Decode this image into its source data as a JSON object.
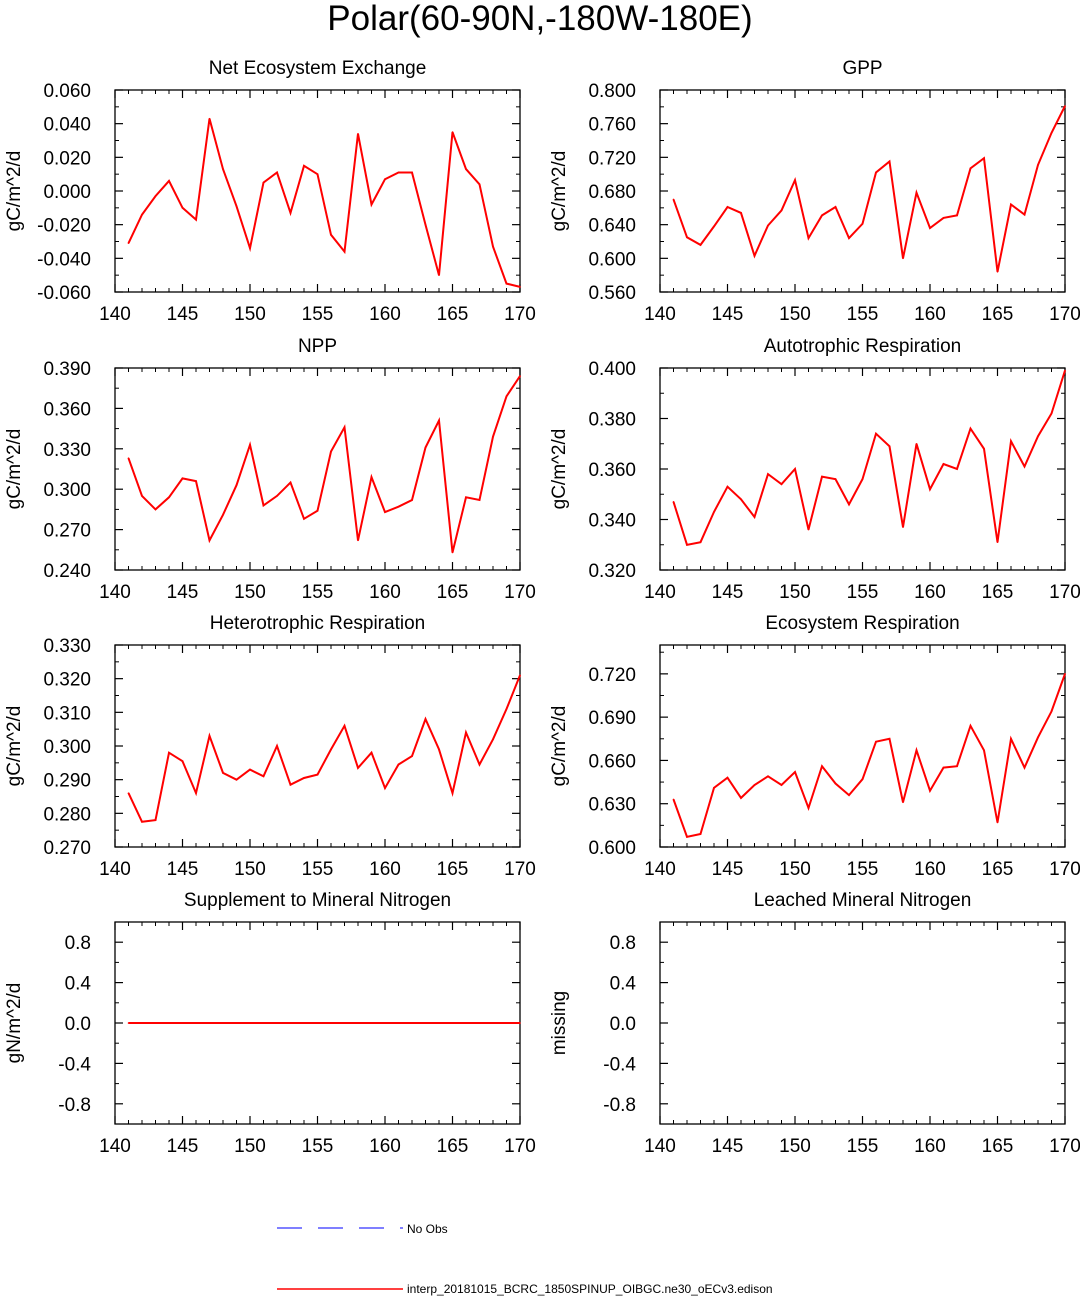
{
  "figure": {
    "title": "Polar(60-90N,-180W-180E)",
    "line_color": "#ff0000",
    "obs_color": "#5555ff"
  },
  "legend": {
    "items": [
      {
        "label": "No Obs",
        "style": "dashed",
        "color": "#5555ff"
      },
      {
        "label": "interp_20181015_BCRC_1850SPINUP_OIBGC.ne30_oECv3.edison",
        "style": "solid",
        "color": "#ff0000"
      }
    ]
  },
  "chart_data": [
    {
      "type": "line",
      "title": "Net Ecosystem Exchange",
      "ylabel": "gC/m^2/d",
      "xlabel": "",
      "xlim": [
        140,
        170
      ],
      "xticks": [
        140,
        145,
        150,
        155,
        160,
        165,
        170
      ],
      "ylim": [
        -0.06,
        0.06
      ],
      "yticks": [
        -0.06,
        -0.04,
        -0.02,
        0.0,
        0.02,
        0.04,
        0.06
      ],
      "ytick_labels": [
        "-0.060",
        "-0.040",
        "-0.020",
        "0.000",
        "0.020",
        "0.040",
        "0.060"
      ],
      "series": [
        {
          "name": "interp_20181015_BCRC_1850SPINUP_OIBGC.ne30_oECv3.edison",
          "x": [
            141,
            142,
            143,
            144,
            145,
            146,
            147,
            148,
            149,
            150,
            151,
            152,
            153,
            154,
            155,
            156,
            157,
            158,
            159,
            160,
            161,
            162,
            163,
            164,
            165,
            166,
            167,
            168,
            169,
            170
          ],
          "values": [
            -0.031,
            -0.014,
            -0.003,
            0.006,
            -0.01,
            -0.017,
            0.043,
            0.013,
            -0.009,
            -0.034,
            0.005,
            0.011,
            -0.013,
            0.015,
            0.01,
            -0.026,
            -0.036,
            0.034,
            -0.008,
            0.007,
            0.011,
            0.011,
            -0.02,
            -0.05,
            0.035,
            0.013,
            0.004,
            -0.033,
            -0.055,
            -0.057
          ]
        }
      ]
    },
    {
      "type": "line",
      "title": "GPP",
      "ylabel": "gC/m^2/d",
      "xlabel": "",
      "xlim": [
        140,
        170
      ],
      "xticks": [
        140,
        145,
        150,
        155,
        160,
        165,
        170
      ],
      "ylim": [
        0.56,
        0.8
      ],
      "yticks": [
        0.56,
        0.6,
        0.64,
        0.68,
        0.72,
        0.76,
        0.8
      ],
      "ytick_labels": [
        "0.560",
        "0.600",
        "0.640",
        "0.680",
        "0.720",
        "0.760",
        "0.800"
      ],
      "series": [
        {
          "name": "interp_20181015_BCRC_1850SPINUP_OIBGC.ne30_oECv3.edison",
          "x": [
            141,
            142,
            143,
            144,
            145,
            146,
            147,
            148,
            149,
            150,
            151,
            152,
            153,
            154,
            155,
            156,
            157,
            158,
            159,
            160,
            161,
            162,
            163,
            164,
            165,
            166,
            167,
            168,
            169,
            170
          ],
          "values": [
            0.67,
            0.625,
            0.616,
            0.638,
            0.661,
            0.654,
            0.603,
            0.639,
            0.657,
            0.693,
            0.624,
            0.651,
            0.661,
            0.624,
            0.641,
            0.702,
            0.715,
            0.6,
            0.678,
            0.636,
            0.648,
            0.651,
            0.707,
            0.719,
            0.584,
            0.664,
            0.652,
            0.711,
            0.749,
            0.781
          ]
        }
      ]
    },
    {
      "type": "line",
      "title": "NPP",
      "ylabel": "gC/m^2/d",
      "xlabel": "",
      "xlim": [
        140,
        170
      ],
      "xticks": [
        140,
        145,
        150,
        155,
        160,
        165,
        170
      ],
      "ylim": [
        0.24,
        0.39
      ],
      "yticks": [
        0.24,
        0.27,
        0.3,
        0.33,
        0.36,
        0.39
      ],
      "ytick_labels": [
        "0.240",
        "0.270",
        "0.300",
        "0.330",
        "0.360",
        "0.390"
      ],
      "series": [
        {
          "name": "interp_20181015_BCRC_1850SPINUP_OIBGC.ne30_oECv3.edison",
          "x": [
            141,
            142,
            143,
            144,
            145,
            146,
            147,
            148,
            149,
            150,
            151,
            152,
            153,
            154,
            155,
            156,
            157,
            158,
            159,
            160,
            161,
            162,
            163,
            164,
            165,
            166,
            167,
            168,
            169,
            170
          ],
          "values": [
            0.323,
            0.295,
            0.285,
            0.294,
            0.308,
            0.306,
            0.262,
            0.281,
            0.303,
            0.333,
            0.288,
            0.295,
            0.305,
            0.278,
            0.284,
            0.328,
            0.346,
            0.262,
            0.309,
            0.283,
            0.287,
            0.292,
            0.331,
            0.351,
            0.253,
            0.294,
            0.292,
            0.339,
            0.369,
            0.384
          ]
        }
      ]
    },
    {
      "type": "line",
      "title": "Autotrophic Respiration",
      "ylabel": "gC/m^2/d",
      "xlabel": "",
      "xlim": [
        140,
        170
      ],
      "xticks": [
        140,
        145,
        150,
        155,
        160,
        165,
        170
      ],
      "ylim": [
        0.32,
        0.4
      ],
      "yticks": [
        0.32,
        0.34,
        0.36,
        0.38,
        0.4
      ],
      "ytick_labels": [
        "0.320",
        "0.340",
        "0.360",
        "0.380",
        "0.400"
      ],
      "series": [
        {
          "name": "interp_20181015_BCRC_1850SPINUP_OIBGC.ne30_oECv3.edison",
          "x": [
            141,
            142,
            143,
            144,
            145,
            146,
            147,
            148,
            149,
            150,
            151,
            152,
            153,
            154,
            155,
            156,
            157,
            158,
            159,
            160,
            161,
            162,
            163,
            164,
            165,
            166,
            167,
            168,
            169,
            170
          ],
          "values": [
            0.347,
            0.33,
            0.331,
            0.343,
            0.353,
            0.348,
            0.341,
            0.358,
            0.354,
            0.36,
            0.336,
            0.357,
            0.356,
            0.346,
            0.356,
            0.374,
            0.369,
            0.337,
            0.37,
            0.352,
            0.362,
            0.36,
            0.376,
            0.368,
            0.331,
            0.371,
            0.361,
            0.373,
            0.382,
            0.399
          ]
        }
      ]
    },
    {
      "type": "line",
      "title": "Heterotrophic Respiration",
      "ylabel": "gC/m^2/d",
      "xlabel": "",
      "xlim": [
        140,
        170
      ],
      "xticks": [
        140,
        145,
        150,
        155,
        160,
        165,
        170
      ],
      "ylim": [
        0.27,
        0.33
      ],
      "yticks": [
        0.27,
        0.28,
        0.29,
        0.3,
        0.31,
        0.32,
        0.33
      ],
      "ytick_labels": [
        "0.270",
        "0.280",
        "0.290",
        "0.300",
        "0.310",
        "0.320",
        "0.330"
      ],
      "series": [
        {
          "name": "interp_20181015_BCRC_1850SPINUP_OIBGC.ne30_oECv3.edison",
          "x": [
            141,
            142,
            143,
            144,
            145,
            146,
            147,
            148,
            149,
            150,
            151,
            152,
            153,
            154,
            155,
            156,
            157,
            158,
            159,
            160,
            161,
            162,
            163,
            164,
            165,
            166,
            167,
            168,
            169,
            170
          ],
          "values": [
            0.286,
            0.2775,
            0.278,
            0.298,
            0.2955,
            0.286,
            0.303,
            0.292,
            0.29,
            0.293,
            0.291,
            0.3,
            0.2885,
            0.2905,
            0.2915,
            0.299,
            0.306,
            0.2935,
            0.298,
            0.2875,
            0.2945,
            0.297,
            0.308,
            0.299,
            0.286,
            0.304,
            0.2945,
            0.302,
            0.311,
            0.321
          ]
        }
      ]
    },
    {
      "type": "line",
      "title": "Ecosystem Respiration",
      "ylabel": "gC/m^2/d",
      "xlabel": "",
      "xlim": [
        140,
        170
      ],
      "xticks": [
        140,
        145,
        150,
        155,
        160,
        165,
        170
      ],
      "ylim": [
        0.6,
        0.74
      ],
      "yticks": [
        0.6,
        0.63,
        0.66,
        0.69,
        0.72
      ],
      "ytick_labels": [
        "0.600",
        "0.630",
        "0.660",
        "0.690",
        "0.720"
      ],
      "series": [
        {
          "name": "interp_20181015_BCRC_1850SPINUP_OIBGC.ne30_oECv3.edison",
          "x": [
            141,
            142,
            143,
            144,
            145,
            146,
            147,
            148,
            149,
            150,
            151,
            152,
            153,
            154,
            155,
            156,
            157,
            158,
            159,
            160,
            161,
            162,
            163,
            164,
            165,
            166,
            167,
            168,
            169,
            170
          ],
          "values": [
            0.633,
            0.607,
            0.609,
            0.641,
            0.648,
            0.634,
            0.643,
            0.649,
            0.643,
            0.652,
            0.627,
            0.656,
            0.644,
            0.636,
            0.647,
            0.673,
            0.675,
            0.631,
            0.667,
            0.639,
            0.655,
            0.656,
            0.684,
            0.667,
            0.617,
            0.675,
            0.655,
            0.676,
            0.694,
            0.72
          ]
        }
      ]
    },
    {
      "type": "line",
      "title": "Supplement to Mineral Nitrogen",
      "ylabel": "gN/m^2/d",
      "xlabel": "",
      "xlim": [
        140,
        170
      ],
      "xticks": [
        140,
        145,
        150,
        155,
        160,
        165,
        170
      ],
      "ylim": [
        -1.0,
        1.0
      ],
      "yticks": [
        -0.8,
        -0.4,
        0.0,
        0.4,
        0.8
      ],
      "ytick_labels": [
        "-0.8",
        "-0.4",
        "0.0",
        "0.4",
        "0.8"
      ],
      "series": [
        {
          "name": "interp_20181015_BCRC_1850SPINUP_OIBGC.ne30_oECv3.edison",
          "x": [
            141,
            142,
            143,
            144,
            145,
            146,
            147,
            148,
            149,
            150,
            151,
            152,
            153,
            154,
            155,
            156,
            157,
            158,
            159,
            160,
            161,
            162,
            163,
            164,
            165,
            166,
            167,
            168,
            169,
            170
          ],
          "values": [
            0,
            0,
            0,
            0,
            0,
            0,
            0,
            0,
            0,
            0,
            0,
            0,
            0,
            0,
            0,
            0,
            0,
            0,
            0,
            0,
            0,
            0,
            0,
            0,
            0,
            0,
            0,
            0,
            0,
            0
          ]
        }
      ]
    },
    {
      "type": "line",
      "title": "Leached Mineral Nitrogen",
      "ylabel": "missing",
      "xlabel": "",
      "xlim": [
        140,
        170
      ],
      "xticks": [
        140,
        145,
        150,
        155,
        160,
        165,
        170
      ],
      "ylim": [
        -1.0,
        1.0
      ],
      "yticks": [
        -0.8,
        -0.4,
        0.0,
        0.4,
        0.8
      ],
      "ytick_labels": [
        "-0.8",
        "-0.4",
        "0.0",
        "0.4",
        "0.8"
      ],
      "series": []
    }
  ]
}
